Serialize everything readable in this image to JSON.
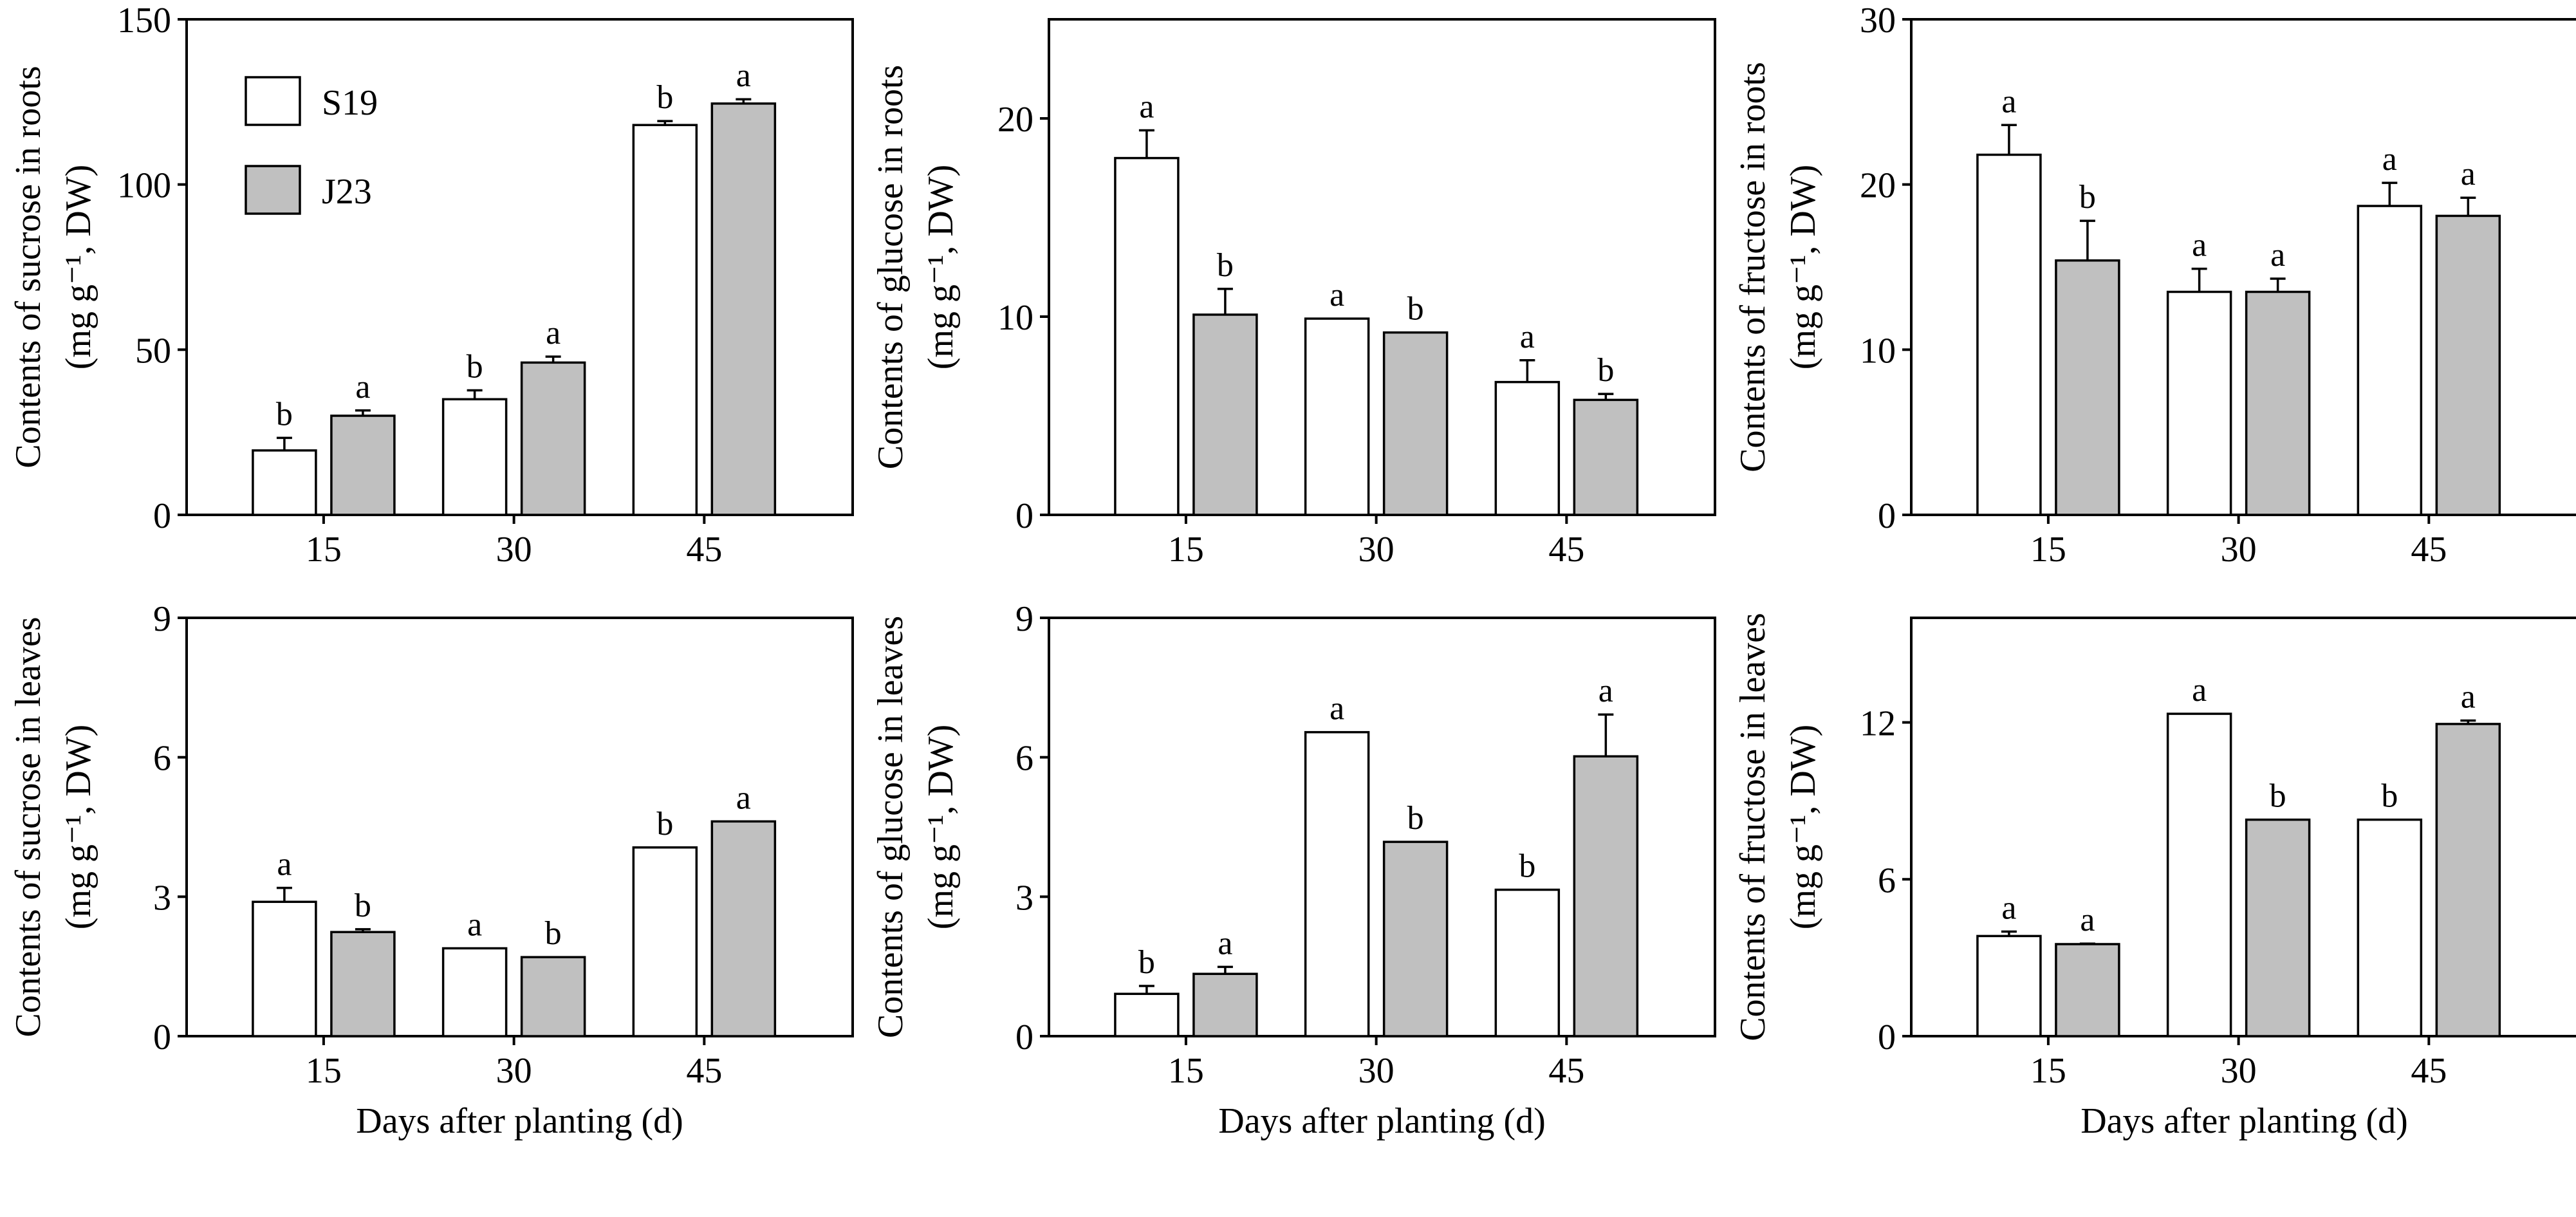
{
  "figure": {
    "legend": [
      {
        "name": "S19",
        "fill": "#ffffff"
      },
      {
        "name": "J23",
        "fill": "#c0c0c0"
      }
    ],
    "bar_stroke": "#000000"
  },
  "chart_data": [
    {
      "type": "bar",
      "id": "sucrose-roots",
      "title": "",
      "ylabel_line1": "Contents of sucrose in roots",
      "ylabel_line2": "(mg g⁻¹, DW)",
      "xlabel": "",
      "categories": [
        "15",
        "30",
        "45"
      ],
      "ylim": [
        0,
        150
      ],
      "yticks": [
        0,
        50,
        100,
        150
      ],
      "legend": "top-left",
      "series": [
        {
          "name": "S19",
          "values": [
            19.5,
            35.0,
            118.0
          ],
          "errors": [
            3.8,
            2.7,
            1.2
          ],
          "letters": [
            "b",
            "b",
            "b"
          ]
        },
        {
          "name": "J23",
          "values": [
            30.0,
            46.1,
            124.5
          ],
          "errors": [
            1.6,
            1.8,
            1.3
          ],
          "letters": [
            "a",
            "a",
            "a"
          ]
        }
      ]
    },
    {
      "type": "bar",
      "id": "glucose-roots",
      "title": "",
      "ylabel_line1": "Contents of glucose in roots",
      "ylabel_line2": "(mg g⁻¹, DW)",
      "xlabel": "",
      "categories": [
        "15",
        "30",
        "45"
      ],
      "ylim": [
        0,
        25
      ],
      "yticks": [
        0,
        10,
        20
      ],
      "legend": "none",
      "series": [
        {
          "name": "S19",
          "values": [
            18.0,
            9.9,
            6.7
          ],
          "errors": [
            1.4,
            0,
            1.1
          ],
          "letters": [
            "a",
            "a",
            "a"
          ]
        },
        {
          "name": "J23",
          "values": [
            10.1,
            9.2,
            5.8
          ],
          "errors": [
            1.3,
            0,
            0.3
          ],
          "letters": [
            "b",
            "b",
            "b"
          ]
        }
      ]
    },
    {
      "type": "bar",
      "id": "fructose-roots",
      "title": "",
      "ylabel_line1": "Contents of fructose in roots",
      "ylabel_line2": "(mg g⁻¹, DW)",
      "xlabel": "",
      "categories": [
        "15",
        "30",
        "45"
      ],
      "ylim": [
        0,
        30
      ],
      "yticks": [
        0,
        10,
        20,
        30
      ],
      "legend": "none",
      "series": [
        {
          "name": "S19",
          "values": [
            21.8,
            13.5,
            18.7
          ],
          "errors": [
            1.8,
            1.4,
            1.4
          ],
          "letters": [
            "a",
            "a",
            "a"
          ]
        },
        {
          "name": "J23",
          "values": [
            15.4,
            13.5,
            18.1
          ],
          "errors": [
            2.4,
            0.8,
            1.1
          ],
          "letters": [
            "b",
            "a",
            "a"
          ]
        }
      ]
    },
    {
      "type": "bar",
      "id": "sucrose-leaves",
      "title": "",
      "ylabel_line1": "Contents of sucrose in leaves",
      "ylabel_line2": "(mg g⁻¹, DW)",
      "xlabel": "Days after planting (d)",
      "categories": [
        "15",
        "30",
        "45"
      ],
      "ylim": [
        0,
        9
      ],
      "yticks": [
        0,
        3,
        6,
        9
      ],
      "legend": "none",
      "series": [
        {
          "name": "S19",
          "values": [
            2.89,
            1.89,
            4.06
          ],
          "errors": [
            0.3,
            0,
            0
          ],
          "letters": [
            "a",
            "a",
            "b"
          ]
        },
        {
          "name": "J23",
          "values": [
            2.24,
            1.7,
            4.62
          ],
          "errors": [
            0.06,
            0,
            0
          ],
          "letters": [
            "b",
            "b",
            "a"
          ]
        }
      ]
    },
    {
      "type": "bar",
      "id": "glucose-leaves",
      "title": "",
      "ylabel_line1": "Contents of glucose in leaves",
      "ylabel_line2": "(mg g⁻¹, DW)",
      "xlabel": "Days after planting (d)",
      "categories": [
        "15",
        "30",
        "45"
      ],
      "ylim": [
        0,
        9
      ],
      "yticks": [
        0,
        3,
        6,
        9
      ],
      "legend": "none",
      "series": [
        {
          "name": "S19",
          "values": [
            0.91,
            6.54,
            3.15
          ],
          "errors": [
            0.17,
            0,
            0
          ],
          "letters": [
            "b",
            "a",
            "b"
          ]
        },
        {
          "name": "J23",
          "values": [
            1.34,
            4.18,
            6.02
          ],
          "errors": [
            0.15,
            0,
            0.9
          ],
          "letters": [
            "a",
            "b",
            "a"
          ]
        }
      ]
    },
    {
      "type": "bar",
      "id": "fructose-leaves",
      "title": "",
      "ylabel_line1": "Contents of fructose in leaves",
      "ylabel_line2": "(mg g⁻¹, DW)",
      "xlabel": "Days after planting (d)",
      "categories": [
        "15",
        "30",
        "45"
      ],
      "ylim": [
        0,
        16
      ],
      "yticks": [
        0,
        6,
        12
      ],
      "legend": "none",
      "series": [
        {
          "name": "S19",
          "values": [
            3.83,
            12.33,
            8.28
          ],
          "errors": [
            0.17,
            0,
            0
          ],
          "letters": [
            "a",
            "a",
            "b"
          ]
        },
        {
          "name": "J23",
          "values": [
            3.52,
            8.28,
            11.94
          ],
          "errors": [
            0.02,
            0,
            0.13
          ],
          "letters": [
            "a",
            "b",
            "a"
          ]
        }
      ]
    }
  ]
}
